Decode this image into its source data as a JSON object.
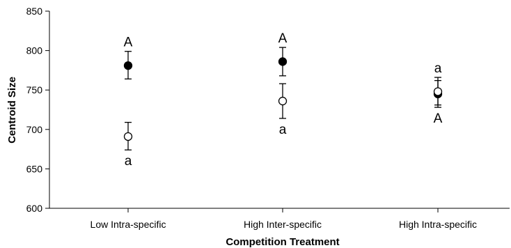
{
  "chart_data": {
    "type": "scatter",
    "xlabel": "Competition Treatment",
    "ylabel": "Centroid Size",
    "ylim": [
      600,
      850
    ],
    "yticks": [
      600,
      650,
      700,
      750,
      800,
      850
    ],
    "categories": [
      "Low Intra-specific",
      "High Inter-specific",
      "High Intra-specific"
    ],
    "grid": false,
    "legend": "none",
    "series": [
      {
        "marker": "filled-circle",
        "color": "#000000",
        "values": [
          781,
          786,
          745
        ],
        "lower": [
          764,
          768,
          728
        ],
        "upper": [
          799,
          804,
          762
        ],
        "letters": [
          "A",
          "A",
          "A"
        ],
        "letter_side": [
          "above",
          "above",
          "below"
        ]
      },
      {
        "marker": "open-circle",
        "color": "#ffffff",
        "values": [
          691,
          736,
          748
        ],
        "lower": [
          674,
          714,
          731
        ],
        "upper": [
          709,
          758,
          766
        ],
        "letters": [
          "a",
          "a",
          "a"
        ],
        "letter_side": [
          "below",
          "below",
          "above"
        ]
      }
    ]
  }
}
